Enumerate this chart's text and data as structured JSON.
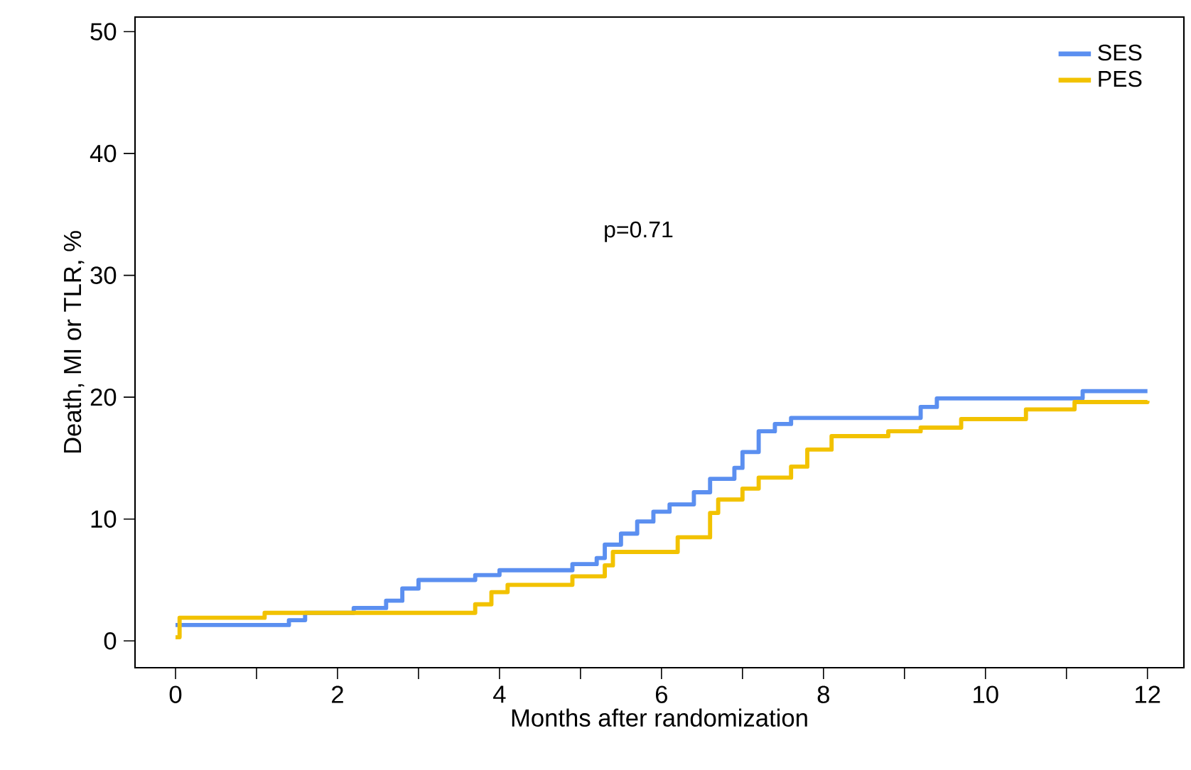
{
  "chart_data": {
    "type": "step",
    "xlabel": "Months after randomization",
    "ylabel": "Death, MI or TLR, %",
    "annotations": [
      "p=0.71"
    ],
    "xlim": [
      -0.5,
      12.45
    ],
    "ylim": [
      -2.2,
      51.2
    ],
    "xticks": [
      0,
      {
        "value": 1,
        "label": null
      },
      2,
      {
        "value": 3,
        "label": null
      },
      4,
      {
        "value": 5,
        "label": null
      },
      6,
      {
        "value": 7,
        "label": null
      },
      8,
      {
        "value": 9,
        "label": null
      },
      10,
      {
        "value": 11,
        "label": null
      },
      12
    ],
    "yticks": [
      0,
      10,
      20,
      30,
      40,
      50
    ],
    "legend": "top right",
    "grid": false,
    "marker": "none",
    "line_style": "solid",
    "series": [
      {
        "name": "SES",
        "color": "#5b8ff0",
        "x": [
          0,
          1.4,
          1.6,
          2.2,
          2.6,
          2.8,
          3.0,
          3.7,
          4.0,
          4.9,
          5.2,
          5.3,
          5.5,
          5.7,
          5.9,
          6.1,
          6.4,
          6.6,
          6.9,
          7.0,
          7.2,
          7.4,
          7.6,
          9.2,
          9.4,
          11.2,
          12
        ],
        "values": [
          1.3,
          1.7,
          2.3,
          2.7,
          3.3,
          4.3,
          5.0,
          5.4,
          5.8,
          6.3,
          6.8,
          7.9,
          8.8,
          9.8,
          10.6,
          11.2,
          12.2,
          13.3,
          14.2,
          15.5,
          17.2,
          17.8,
          18.3,
          19.2,
          19.9,
          20.5,
          20.5
        ]
      },
      {
        "name": "PES",
        "color": "#f2c200",
        "x": [
          0,
          0.05,
          1.1,
          3.7,
          3.9,
          4.1,
          4.9,
          5.3,
          5.4,
          6.2,
          6.6,
          6.7,
          7.0,
          7.2,
          7.6,
          7.8,
          8.1,
          8.8,
          9.2,
          9.7,
          10.5,
          11.1,
          12
        ],
        "values": [
          0.3,
          1.9,
          2.3,
          3.0,
          4.0,
          4.6,
          5.3,
          6.2,
          7.3,
          8.5,
          10.5,
          11.6,
          12.5,
          13.4,
          14.3,
          15.7,
          16.8,
          17.2,
          17.5,
          18.2,
          19.0,
          19.6,
          19.7
        ]
      }
    ]
  }
}
